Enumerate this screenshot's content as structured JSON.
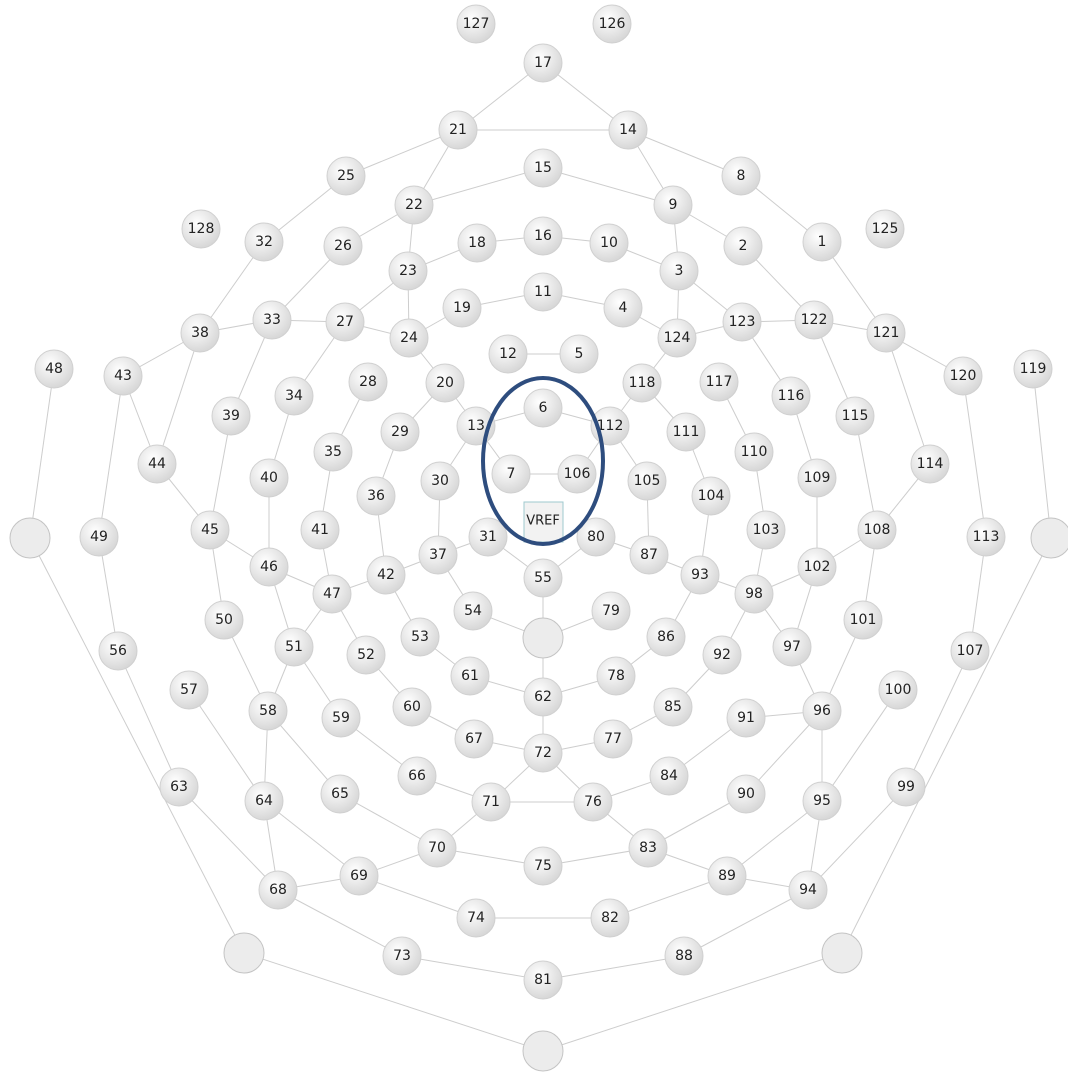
{
  "nodes": [
    {
      "label": "127"
    },
    {
      "label": "126"
    },
    {
      "label": "17"
    },
    {
      "label": "21"
    },
    {
      "label": "14"
    },
    {
      "label": "25"
    },
    {
      "label": "15"
    },
    {
      "label": "8"
    },
    {
      "label": "22"
    },
    {
      "label": "9"
    },
    {
      "label": "128"
    },
    {
      "label": "32"
    },
    {
      "label": "26"
    },
    {
      "label": "18"
    },
    {
      "label": "16"
    },
    {
      "label": "10"
    },
    {
      "label": "2"
    },
    {
      "label": "1"
    },
    {
      "label": "125"
    },
    {
      "label": "23"
    },
    {
      "label": "3"
    },
    {
      "label": "11"
    },
    {
      "label": "19"
    },
    {
      "label": "4"
    },
    {
      "label": "38"
    },
    {
      "label": "33"
    },
    {
      "label": "27"
    },
    {
      "label": "24"
    },
    {
      "label": "124"
    },
    {
      "label": "123"
    },
    {
      "label": "122"
    },
    {
      "label": "121"
    },
    {
      "label": "12"
    },
    {
      "label": "5"
    },
    {
      "label": "48"
    },
    {
      "label": "43"
    },
    {
      "label": "28"
    },
    {
      "label": "20"
    },
    {
      "label": "118"
    },
    {
      "label": "117"
    },
    {
      "label": "120"
    },
    {
      "label": "119"
    },
    {
      "label": "34"
    },
    {
      "label": "39"
    },
    {
      "label": "6"
    },
    {
      "label": "13"
    },
    {
      "label": "112"
    },
    {
      "label": "116"
    },
    {
      "label": "115"
    },
    {
      "label": "29"
    },
    {
      "label": "111"
    },
    {
      "label": "35"
    },
    {
      "label": "110"
    },
    {
      "label": "44"
    },
    {
      "label": "114"
    },
    {
      "label": "40"
    },
    {
      "label": "30"
    },
    {
      "label": "7"
    },
    {
      "label": "106"
    },
    {
      "label": "105"
    },
    {
      "label": "36"
    },
    {
      "label": "104"
    },
    {
      "label": "109"
    },
    {
      "label": "49"
    },
    {
      "label": "45"
    },
    {
      "label": "41"
    },
    {
      "label": "31"
    },
    {
      "label": "80"
    },
    {
      "label": "103"
    },
    {
      "label": "108"
    },
    {
      "label": "113"
    },
    {
      "label": "46"
    },
    {
      "label": "42"
    },
    {
      "label": "37"
    },
    {
      "label": "55"
    },
    {
      "label": "87"
    },
    {
      "label": "93"
    },
    {
      "label": "102"
    },
    {
      "label": "47"
    },
    {
      "label": "98"
    },
    {
      "label": "50"
    },
    {
      "label": "54"
    },
    {
      "label": "79"
    },
    {
      "label": "101"
    },
    {
      "label": "56"
    },
    {
      "label": "51"
    },
    {
      "label": "52"
    },
    {
      "label": "53"
    },
    {
      "label": "86"
    },
    {
      "label": "92"
    },
    {
      "label": "97"
    },
    {
      "label": "107"
    },
    {
      "label": "57"
    },
    {
      "label": "61"
    },
    {
      "label": "78"
    },
    {
      "label": "100"
    },
    {
      "label": "62"
    },
    {
      "label": "58"
    },
    {
      "label": "59"
    },
    {
      "label": "60"
    },
    {
      "label": "85"
    },
    {
      "label": "91"
    },
    {
      "label": "96"
    },
    {
      "label": "67"
    },
    {
      "label": "77"
    },
    {
      "label": "72"
    },
    {
      "label": "66"
    },
    {
      "label": "84"
    },
    {
      "label": "63"
    },
    {
      "label": "64"
    },
    {
      "label": "65"
    },
    {
      "label": "71"
    },
    {
      "label": "76"
    },
    {
      "label": "90"
    },
    {
      "label": "95"
    },
    {
      "label": "99"
    },
    {
      "label": "70"
    },
    {
      "label": "83"
    },
    {
      "label": "75"
    },
    {
      "label": "69"
    },
    {
      "label": "89"
    },
    {
      "label": "68"
    },
    {
      "label": "94"
    },
    {
      "label": "74"
    },
    {
      "label": "82"
    },
    {
      "label": "73"
    },
    {
      "label": "88"
    },
    {
      "label": "81"
    }
  ],
  "reference": {
    "label": "VREF"
  }
}
